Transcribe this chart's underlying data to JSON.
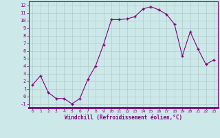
{
  "x": [
    0,
    1,
    2,
    3,
    4,
    5,
    6,
    7,
    8,
    9,
    10,
    11,
    12,
    13,
    14,
    15,
    16,
    17,
    18,
    19,
    20,
    21,
    22,
    23
  ],
  "y": [
    1.5,
    2.7,
    0.5,
    -0.3,
    -0.3,
    -1.0,
    -0.3,
    2.2,
    4.0,
    6.8,
    10.1,
    10.1,
    10.2,
    10.5,
    11.5,
    11.8,
    11.4,
    10.8,
    9.5,
    5.3,
    8.5,
    6.2,
    4.2,
    4.8
  ],
  "line_color": "#800080",
  "marker": "+",
  "marker_size": 3,
  "bg_color": "#cce8e8",
  "grid_color": "#b0cccc",
  "xlabel": "Windchill (Refroidissement éolien,°C)",
  "xlabel_color": "#800080",
  "tick_color": "#800080",
  "ylim": [
    -1.5,
    12.5
  ],
  "xlim": [
    -0.5,
    23.5
  ],
  "yticks": [
    -1,
    0,
    1,
    2,
    3,
    4,
    5,
    6,
    7,
    8,
    9,
    10,
    11,
    12
  ],
  "xticks": [
    0,
    1,
    2,
    3,
    4,
    5,
    6,
    7,
    8,
    9,
    10,
    11,
    12,
    13,
    14,
    15,
    16,
    17,
    18,
    19,
    20,
    21,
    22,
    23
  ],
  "spine_color": "#800080",
  "bottom_bar_color": "#800080"
}
